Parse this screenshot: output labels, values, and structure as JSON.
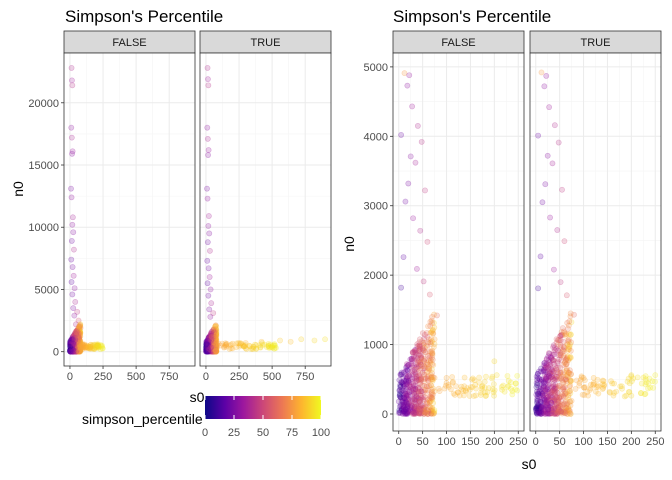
{
  "colors": {
    "panel_bg": "#ffffff",
    "strip_bg": "#d9d9d9",
    "grid_major": "#ebebeb",
    "grid_minor": "#f5f5f5",
    "border": "#333333",
    "scale": [
      "#0d0887",
      "#5c01a6",
      "#9c179e",
      "#cc4778",
      "#ed7953",
      "#fdb42f",
      "#f0f921"
    ]
  },
  "legend": {
    "title": "simpson_percentile",
    "breaks": [
      "0",
      "25",
      "50",
      "75",
      "100"
    ],
    "limits": [
      0,
      100
    ]
  },
  "chart_data": [
    {
      "type": "scatter",
      "title": "Simpson's Percentile",
      "xlabel": "s0",
      "ylabel": "n0",
      "facet_labels": [
        "FALSE",
        "TRUE"
      ],
      "x_ticks": [
        "0",
        "250",
        "500",
        "750"
      ],
      "x_tick_values": [
        0,
        250,
        500,
        750
      ],
      "y_ticks": [
        "0",
        "5000",
        "10000",
        "15000",
        "20000"
      ],
      "y_tick_values": [
        0,
        5000,
        10000,
        15000,
        20000
      ],
      "xlim": [
        -45,
        945
      ],
      "ylim": [
        -1150,
        24000
      ],
      "grid": true,
      "color_var": "simpson_percentile",
      "point_alpha": 0.22,
      "facets": [
        {
          "label": "FALSE",
          "series": [
            {
              "x": 12,
              "y": 22800,
              "c": 40
            },
            {
              "x": 15,
              "y": 21800,
              "c": 35
            },
            {
              "x": 18,
              "y": 21400,
              "c": 42
            },
            {
              "x": 10,
              "y": 18000,
              "c": 30
            },
            {
              "x": 14,
              "y": 17200,
              "c": 38
            },
            {
              "x": 20,
              "y": 16100,
              "c": 33
            },
            {
              "x": 16,
              "y": 15900,
              "c": 28
            },
            {
              "x": 8,
              "y": 13100,
              "c": 25
            },
            {
              "x": 12,
              "y": 12400,
              "c": 31
            },
            {
              "x": 22,
              "y": 10800,
              "c": 36
            },
            {
              "x": 18,
              "y": 10200,
              "c": 30
            },
            {
              "x": 25,
              "y": 9600,
              "c": 27
            },
            {
              "x": 14,
              "y": 8900,
              "c": 22
            },
            {
              "x": 30,
              "y": 8200,
              "c": 40
            },
            {
              "x": 10,
              "y": 7400,
              "c": 20
            },
            {
              "x": 20,
              "y": 6800,
              "c": 24
            },
            {
              "x": 28,
              "y": 6100,
              "c": 35
            },
            {
              "x": 12,
              "y": 5600,
              "c": 18
            },
            {
              "x": 35,
              "y": 5100,
              "c": 30
            },
            {
              "x": 18,
              "y": 4600,
              "c": 22
            },
            {
              "x": 40,
              "y": 4000,
              "c": 38
            },
            {
              "x": 25,
              "y": 3500,
              "c": 26
            },
            {
              "x": 55,
              "y": 3200,
              "c": 45
            },
            {
              "x": 33,
              "y": 2900,
              "c": 30
            },
            {
              "x": 65,
              "y": 2500,
              "c": 52
            },
            {
              "x": 45,
              "y": 2200,
              "c": 40
            },
            {
              "x": 80,
              "y": 1900,
              "c": 58
            }
          ]
        },
        {
          "label": "TRUE",
          "series": [
            {
              "x": 12,
              "y": 22800,
              "c": 40
            },
            {
              "x": 15,
              "y": 21900,
              "c": 35
            },
            {
              "x": 18,
              "y": 21400,
              "c": 42
            },
            {
              "x": 10,
              "y": 18000,
              "c": 30
            },
            {
              "x": 14,
              "y": 17100,
              "c": 38
            },
            {
              "x": 20,
              "y": 16200,
              "c": 33
            },
            {
              "x": 16,
              "y": 15800,
              "c": 28
            },
            {
              "x": 8,
              "y": 13100,
              "c": 25
            },
            {
              "x": 12,
              "y": 12300,
              "c": 31
            },
            {
              "x": 22,
              "y": 10900,
              "c": 36
            },
            {
              "x": 18,
              "y": 10100,
              "c": 30
            },
            {
              "x": 25,
              "y": 9500,
              "c": 27
            },
            {
              "x": 14,
              "y": 8800,
              "c": 22
            },
            {
              "x": 30,
              "y": 8100,
              "c": 40
            },
            {
              "x": 10,
              "y": 7300,
              "c": 20
            },
            {
              "x": 20,
              "y": 6700,
              "c": 24
            },
            {
              "x": 28,
              "y": 6000,
              "c": 35
            },
            {
              "x": 12,
              "y": 5500,
              "c": 18
            },
            {
              "x": 35,
              "y": 5000,
              "c": 30
            },
            {
              "x": 18,
              "y": 4500,
              "c": 22
            },
            {
              "x": 40,
              "y": 3900,
              "c": 38
            },
            {
              "x": 25,
              "y": 3400,
              "c": 26
            },
            {
              "x": 55,
              "y": 3100,
              "c": 45
            },
            {
              "x": 33,
              "y": 2800,
              "c": 30
            },
            {
              "x": 300,
              "y": 700,
              "c": 82
            },
            {
              "x": 420,
              "y": 800,
              "c": 85
            },
            {
              "x": 560,
              "y": 900,
              "c": 88
            },
            {
              "x": 640,
              "y": 800,
              "c": 86
            },
            {
              "x": 720,
              "y": 1000,
              "c": 90
            },
            {
              "x": 820,
              "y": 900,
              "c": 92
            },
            {
              "x": 900,
              "y": 1000,
              "c": 94
            }
          ]
        }
      ]
    },
    {
      "type": "scatter",
      "title": "Simpson's Percentile",
      "xlabel": "s0",
      "ylabel": "n0",
      "facet_labels": [
        "FALSE",
        "TRUE"
      ],
      "x_ticks": [
        "0",
        "50",
        "100",
        "150",
        "200",
        "250"
      ],
      "x_tick_values": [
        0,
        50,
        100,
        150,
        200,
        250
      ],
      "y_ticks": [
        "0",
        "1000",
        "2000",
        "3000",
        "4000",
        "5000"
      ],
      "y_tick_values": [
        0,
        1000,
        2000,
        3000,
        4000,
        5000
      ],
      "xlim": [
        -12,
        262
      ],
      "ylim": [
        -245,
        5200
      ],
      "grid": true,
      "color_var": "simpson_percentile",
      "point_alpha": 0.22,
      "facets": [
        {
          "label": "FALSE",
          "series": [
            {
              "x": 12,
              "y": 4910,
              "c": 75
            },
            {
              "x": 5,
              "y": 4020,
              "c": 20
            },
            {
              "x": 18,
              "y": 4730,
              "c": 30
            },
            {
              "x": 22,
              "y": 4880,
              "c": 32
            },
            {
              "x": 28,
              "y": 4430,
              "c": 35
            },
            {
              "x": 40,
              "y": 4150,
              "c": 40
            },
            {
              "x": 48,
              "y": 3920,
              "c": 42
            },
            {
              "x": 25,
              "y": 3710,
              "c": 28
            },
            {
              "x": 35,
              "y": 3620,
              "c": 36
            },
            {
              "x": 55,
              "y": 3220,
              "c": 45
            },
            {
              "x": 20,
              "y": 3320,
              "c": 25
            },
            {
              "x": 14,
              "y": 3060,
              "c": 22
            },
            {
              "x": 30,
              "y": 2820,
              "c": 33
            },
            {
              "x": 45,
              "y": 2640,
              "c": 40
            },
            {
              "x": 60,
              "y": 2480,
              "c": 50
            },
            {
              "x": 10,
              "y": 2260,
              "c": 18
            },
            {
              "x": 38,
              "y": 2090,
              "c": 35
            },
            {
              "x": 52,
              "y": 1910,
              "c": 45
            },
            {
              "x": 5,
              "y": 1820,
              "c": 12
            },
            {
              "x": 65,
              "y": 1720,
              "c": 55
            },
            {
              "x": 80,
              "y": 1420,
              "c": 62
            },
            {
              "x": 100,
              "y": 520,
              "c": 80
            },
            {
              "x": 120,
              "y": 400,
              "c": 82
            },
            {
              "x": 140,
              "y": 340,
              "c": 85
            },
            {
              "x": 160,
              "y": 420,
              "c": 88
            },
            {
              "x": 180,
              "y": 380,
              "c": 90
            },
            {
              "x": 200,
              "y": 760,
              "c": 92
            },
            {
              "x": 205,
              "y": 560,
              "c": 93
            },
            {
              "x": 230,
              "y": 480,
              "c": 95
            },
            {
              "x": 245,
              "y": 440,
              "c": 96
            }
          ]
        },
        {
          "label": "TRUE",
          "series": [
            {
              "x": 12,
              "y": 4920,
              "c": 75
            },
            {
              "x": 5,
              "y": 4010,
              "c": 20
            },
            {
              "x": 18,
              "y": 4720,
              "c": 30
            },
            {
              "x": 22,
              "y": 4870,
              "c": 32
            },
            {
              "x": 28,
              "y": 4420,
              "c": 35
            },
            {
              "x": 40,
              "y": 4160,
              "c": 40
            },
            {
              "x": 48,
              "y": 3910,
              "c": 42
            },
            {
              "x": 25,
              "y": 3720,
              "c": 28
            },
            {
              "x": 35,
              "y": 3610,
              "c": 36
            },
            {
              "x": 55,
              "y": 3230,
              "c": 45
            },
            {
              "x": 20,
              "y": 3310,
              "c": 25
            },
            {
              "x": 14,
              "y": 3050,
              "c": 22
            },
            {
              "x": 30,
              "y": 2830,
              "c": 33
            },
            {
              "x": 45,
              "y": 2650,
              "c": 40
            },
            {
              "x": 60,
              "y": 2490,
              "c": 50
            },
            {
              "x": 10,
              "y": 2270,
              "c": 18
            },
            {
              "x": 38,
              "y": 2080,
              "c": 35
            },
            {
              "x": 52,
              "y": 1900,
              "c": 45
            },
            {
              "x": 5,
              "y": 1810,
              "c": 12
            },
            {
              "x": 65,
              "y": 1710,
              "c": 55
            },
            {
              "x": 80,
              "y": 1430,
              "c": 62
            },
            {
              "x": 100,
              "y": 520,
              "c": 80
            },
            {
              "x": 120,
              "y": 420,
              "c": 82
            },
            {
              "x": 140,
              "y": 360,
              "c": 85
            },
            {
              "x": 160,
              "y": 440,
              "c": 88
            },
            {
              "x": 180,
              "y": 400,
              "c": 90
            },
            {
              "x": 200,
              "y": 560,
              "c": 92
            },
            {
              "x": 230,
              "y": 500,
              "c": 95
            },
            {
              "x": 250,
              "y": 560,
              "c": 97
            }
          ]
        }
      ]
    }
  ]
}
